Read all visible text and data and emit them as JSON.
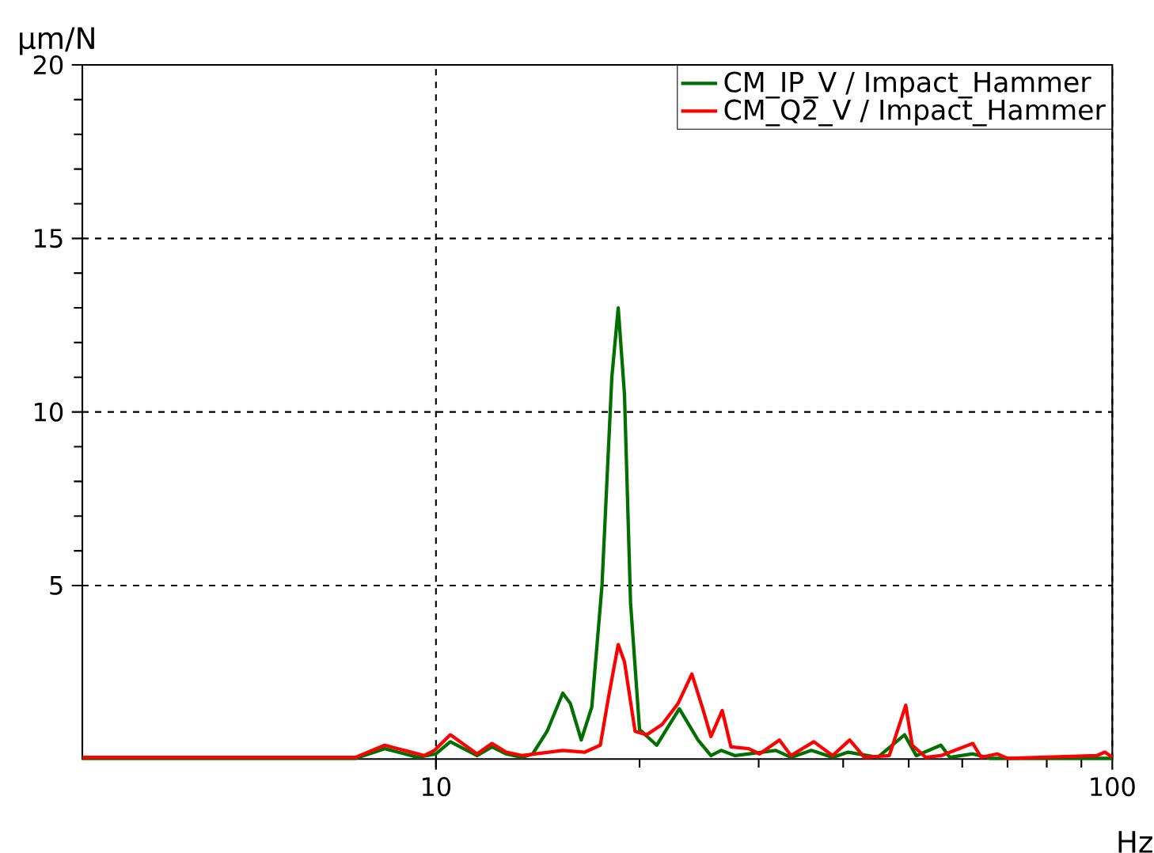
{
  "chart_data": {
    "type": "line",
    "xlabel": "Hz",
    "ylabel": "µm/N",
    "log": "x",
    "xlim": [
      3,
      100
    ],
    "xticks": [
      10,
      100
    ],
    "ylim": [
      0,
      20
    ],
    "yticks": [
      5,
      10,
      15,
      20
    ],
    "grid": true,
    "legend": "top right",
    "marker": "none",
    "line_style": "solid",
    "series": [
      {
        "name": "CM_IP_V / Impact_Hammer",
        "color": "#007000",
        "x": [
          3,
          7.6,
          8.4,
          9.4,
          10,
          10.5,
          11.5,
          12.1,
          12.7,
          13.4,
          13.9,
          14.6,
          15.4,
          15.8,
          16.4,
          17.0,
          17.6,
          18.2,
          18.6,
          19.0,
          19.4,
          20.0,
          21.2,
          22.9,
          24.4,
          25.5,
          26.4,
          27.7,
          31.8,
          33.5,
          35.9,
          38.6,
          40.7,
          45,
          49.3,
          51.3,
          55.8,
          57.5,
          62.2,
          66,
          100
        ],
        "values": [
          0.02,
          0.02,
          0.3,
          0.05,
          0.15,
          0.5,
          0.1,
          0.35,
          0.15,
          0.05,
          0.15,
          0.8,
          1.9,
          1.6,
          0.55,
          1.5,
          5.0,
          11.0,
          13.0,
          10.5,
          4.5,
          0.85,
          0.4,
          1.45,
          0.55,
          0.1,
          0.25,
          0.1,
          0.25,
          0.05,
          0.25,
          0.05,
          0.2,
          0.05,
          0.7,
          0.1,
          0.4,
          0.05,
          0.15,
          0.02,
          0.02
        ]
      },
      {
        "name": "CM_Q2_V / Impact_Hammer",
        "color": "#ff0000",
        "x": [
          3,
          7.6,
          8.4,
          9.6,
          9.95,
          10.5,
          11.5,
          12.1,
          12.7,
          13.4,
          15.4,
          16.6,
          17.5,
          18.0,
          18.6,
          19.0,
          19.7,
          20.5,
          21.6,
          22.8,
          23.9,
          24.8,
          25.5,
          26.5,
          27.3,
          29.0,
          30.1,
          32.2,
          33.5,
          36.2,
          38.6,
          40.9,
          43.0,
          46.8,
          49.5,
          50.6,
          53.0,
          55.8,
          62.2,
          64,
          67.6,
          70,
          94.8,
          97.5,
          100
        ],
        "values": [
          0.05,
          0.05,
          0.4,
          0.1,
          0.25,
          0.7,
          0.15,
          0.45,
          0.2,
          0.1,
          0.25,
          0.2,
          0.4,
          1.8,
          3.3,
          2.8,
          0.8,
          0.7,
          1.0,
          1.6,
          2.45,
          1.45,
          0.65,
          1.4,
          0.35,
          0.3,
          0.15,
          0.55,
          0.1,
          0.5,
          0.1,
          0.55,
          0.05,
          0.1,
          1.55,
          0.4,
          0.05,
          0.1,
          0.45,
          0.05,
          0.15,
          0.02,
          0.1,
          0.2,
          0.05
        ]
      }
    ]
  }
}
